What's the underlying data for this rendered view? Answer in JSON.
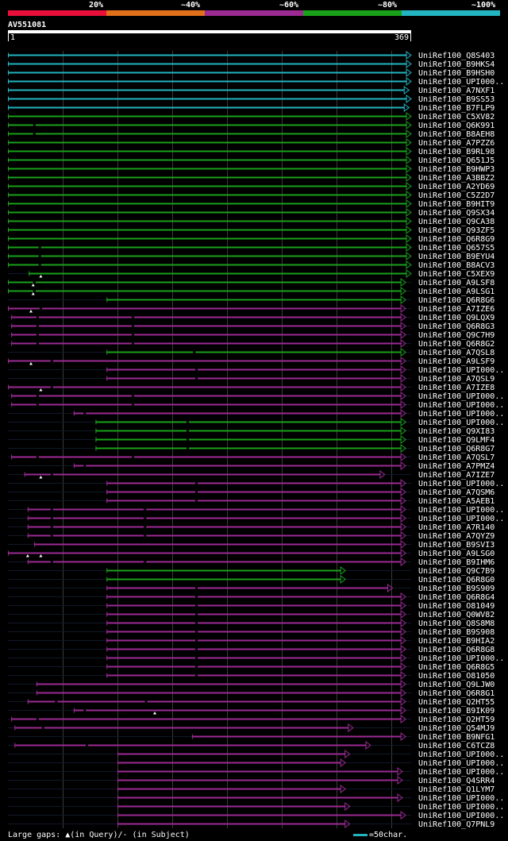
{
  "legend": {
    "labels": [
      "20%",
      "~40%",
      "~60%",
      "~80%",
      "~100%"
    ],
    "colors": [
      "#e8103a",
      "#e0701a",
      "#9c2a93",
      "#1aa11a",
      "#22b5c0"
    ]
  },
  "query": {
    "name": "AV551081",
    "start": "1",
    "end": "369"
  },
  "footer": {
    "gaps_note": "Large gaps: ▲(in Query)/- (in Subject)",
    "scale_note": "=50char."
  },
  "colors": {
    "background": "#000000",
    "baseline": "#101828",
    "grid": "#3a3a3a",
    "tick": "#000000"
  },
  "hits": [
    {
      "label": "UniRef100_Q8S403",
      "identity": 100,
      "q_start": 1,
      "q_end": 369,
      "gap_ticks": [],
      "query_gaps": []
    },
    {
      "label": "UniRef100_B9HKS4",
      "identity": 100,
      "q_start": 1,
      "q_end": 369,
      "gap_ticks": [],
      "query_gaps": []
    },
    {
      "label": "UniRef100_B9HSH0",
      "identity": 100,
      "q_start": 1,
      "q_end": 369,
      "gap_ticks": [],
      "query_gaps": []
    },
    {
      "label": "UniRef100_UPI000..",
      "identity": 100,
      "q_start": 1,
      "q_end": 369,
      "gap_ticks": [],
      "query_gaps": []
    },
    {
      "label": "UniRef100_A7NXF1",
      "identity": 100,
      "q_start": 1,
      "q_end": 367,
      "gap_ticks": [],
      "query_gaps": []
    },
    {
      "label": "UniRef100_B9SS53",
      "identity": 100,
      "q_start": 1,
      "q_end": 369,
      "gap_ticks": [],
      "query_gaps": []
    },
    {
      "label": "UniRef100_B7FLP9",
      "identity": 100,
      "q_start": 1,
      "q_end": 367,
      "gap_ticks": [],
      "query_gaps": []
    },
    {
      "label": "UniRef100_C5XV82",
      "identity": 80,
      "q_start": 1,
      "q_end": 369,
      "gap_ticks": [],
      "query_gaps": []
    },
    {
      "label": "UniRef100_Q6K991",
      "identity": 80,
      "q_start": 1,
      "q_end": 369,
      "gap_ticks": [
        24
      ],
      "query_gaps": []
    },
    {
      "label": "UniRef100_B8AEH8",
      "identity": 80,
      "q_start": 1,
      "q_end": 369,
      "gap_ticks": [
        24
      ],
      "query_gaps": []
    },
    {
      "label": "UniRef100_A7PZZ6",
      "identity": 80,
      "q_start": 1,
      "q_end": 369,
      "gap_ticks": [],
      "query_gaps": []
    },
    {
      "label": "UniRef100_B9RL98",
      "identity": 80,
      "q_start": 1,
      "q_end": 369,
      "gap_ticks": [],
      "query_gaps": []
    },
    {
      "label": "UniRef100_Q651J5",
      "identity": 80,
      "q_start": 1,
      "q_end": 369,
      "gap_ticks": [],
      "query_gaps": []
    },
    {
      "label": "UniRef100_B9HWP3",
      "identity": 80,
      "q_start": 1,
      "q_end": 369,
      "gap_ticks": [],
      "query_gaps": []
    },
    {
      "label": "UniRef100_A3BBZ2",
      "identity": 80,
      "q_start": 1,
      "q_end": 369,
      "gap_ticks": [],
      "query_gaps": []
    },
    {
      "label": "UniRef100_A2YD69",
      "identity": 80,
      "q_start": 1,
      "q_end": 369,
      "gap_ticks": [],
      "query_gaps": []
    },
    {
      "label": "UniRef100_C5Z2D7",
      "identity": 80,
      "q_start": 1,
      "q_end": 369,
      "gap_ticks": [],
      "query_gaps": []
    },
    {
      "label": "UniRef100_B9HIT9",
      "identity": 80,
      "q_start": 1,
      "q_end": 369,
      "gap_ticks": [],
      "query_gaps": []
    },
    {
      "label": "UniRef100_Q9SX34",
      "identity": 80,
      "q_start": 1,
      "q_end": 369,
      "gap_ticks": [],
      "query_gaps": []
    },
    {
      "label": "UniRef100_Q9CA38",
      "identity": 80,
      "q_start": 1,
      "q_end": 369,
      "gap_ticks": [],
      "query_gaps": []
    },
    {
      "label": "UniRef100_Q93ZF5",
      "identity": 80,
      "q_start": 1,
      "q_end": 369,
      "gap_ticks": [],
      "query_gaps": []
    },
    {
      "label": "UniRef100_Q6R8G9",
      "identity": 80,
      "q_start": 1,
      "q_end": 369,
      "gap_ticks": [],
      "query_gaps": []
    },
    {
      "label": "UniRef100_Q657S5",
      "identity": 80,
      "q_start": 1,
      "q_end": 369,
      "gap_ticks": [
        29
      ],
      "query_gaps": []
    },
    {
      "label": "UniRef100_B9EYU4",
      "identity": 80,
      "q_start": 1,
      "q_end": 369,
      "gap_ticks": [
        29
      ],
      "query_gaps": []
    },
    {
      "label": "UniRef100_B8ACV3",
      "identity": 80,
      "q_start": 1,
      "q_end": 369,
      "gap_ticks": [
        29
      ],
      "query_gaps": []
    },
    {
      "label": "UniRef100_C5XEX9",
      "identity": 80,
      "q_start": 20,
      "q_end": 369,
      "gap_ticks": [],
      "query_gaps": [
        31
      ]
    },
    {
      "label": "UniRef100_A9LSF8",
      "identity": 80,
      "q_start": 1,
      "q_end": 364,
      "gap_ticks": [
        24
      ],
      "query_gaps": [
        24
      ]
    },
    {
      "label": "UniRef100_A9LSG1",
      "identity": 80,
      "q_start": 1,
      "q_end": 364,
      "gap_ticks": [
        24
      ],
      "query_gaps": [
        24
      ]
    },
    {
      "label": "UniRef100_Q6R8G6",
      "identity": 80,
      "q_start": 91,
      "q_end": 364,
      "gap_ticks": [],
      "query_gaps": []
    },
    {
      "label": "UniRef100_A7IZE6",
      "identity": 60,
      "q_start": 1,
      "q_end": 364,
      "gap_ticks": [
        30
      ],
      "query_gaps": [
        22
      ]
    },
    {
      "label": "UniRef100_Q9LQX9",
      "identity": 60,
      "q_start": 4,
      "q_end": 364,
      "gap_ticks": [
        27,
        114
      ],
      "query_gaps": []
    },
    {
      "label": "UniRef100_Q6R8G3",
      "identity": 60,
      "q_start": 4,
      "q_end": 364,
      "gap_ticks": [
        27,
        114
      ],
      "query_gaps": []
    },
    {
      "label": "UniRef100_Q9C7H9",
      "identity": 60,
      "q_start": 4,
      "q_end": 364,
      "gap_ticks": [
        27,
        114
      ],
      "query_gaps": []
    },
    {
      "label": "UniRef100_Q6R8G2",
      "identity": 60,
      "q_start": 4,
      "q_end": 364,
      "gap_ticks": [
        27,
        114
      ],
      "query_gaps": []
    },
    {
      "label": "UniRef100_A7QSL8",
      "identity": 80,
      "q_start": 91,
      "q_end": 364,
      "gap_ticks": [
        170
      ],
      "query_gaps": []
    },
    {
      "label": "UniRef100_A9LSF9",
      "identity": 60,
      "q_start": 1,
      "q_end": 364,
      "gap_ticks": [
        40
      ],
      "query_gaps": [
        22
      ]
    },
    {
      "label": "UniRef100_UPI000..",
      "identity": 60,
      "q_start": 91,
      "q_end": 364,
      "gap_ticks": [
        172
      ],
      "query_gaps": []
    },
    {
      "label": "UniRef100_A7QSL9",
      "identity": 60,
      "q_start": 91,
      "q_end": 364,
      "gap_ticks": [
        172
      ],
      "query_gaps": []
    },
    {
      "label": "UniRef100_A7IZE8",
      "identity": 60,
      "q_start": 1,
      "q_end": 364,
      "gap_ticks": [
        40
      ],
      "query_gaps": [
        31
      ]
    },
    {
      "label": "UniRef100_UPI000..",
      "identity": 60,
      "q_start": 4,
      "q_end": 364,
      "gap_ticks": [
        27,
        114
      ],
      "query_gaps": []
    },
    {
      "label": "UniRef100_UPI000..",
      "identity": 60,
      "q_start": 4,
      "q_end": 364,
      "gap_ticks": [
        27,
        114
      ],
      "query_gaps": []
    },
    {
      "label": "UniRef100_UPI000..",
      "identity": 60,
      "q_start": 61,
      "q_end": 364,
      "gap_ticks": [
        70
      ],
      "query_gaps": []
    },
    {
      "label": "UniRef100_UPI000..",
      "identity": 80,
      "q_start": 81,
      "q_end": 364,
      "gap_ticks": [
        164
      ],
      "query_gaps": []
    },
    {
      "label": "UniRef100_Q9XI83",
      "identity": 80,
      "q_start": 81,
      "q_end": 364,
      "gap_ticks": [
        164
      ],
      "query_gaps": []
    },
    {
      "label": "UniRef100_Q9LMF4",
      "identity": 80,
      "q_start": 81,
      "q_end": 364,
      "gap_ticks": [
        164
      ],
      "query_gaps": []
    },
    {
      "label": "UniRef100_Q6R8G7",
      "identity": 80,
      "q_start": 81,
      "q_end": 364,
      "gap_ticks": [
        164
      ],
      "query_gaps": []
    },
    {
      "label": "UniRef100_A7QSL7",
      "identity": 60,
      "q_start": 4,
      "q_end": 364,
      "gap_ticks": [
        27,
        114
      ],
      "query_gaps": []
    },
    {
      "label": "UniRef100_A7PMZ4",
      "identity": 60,
      "q_start": 61,
      "q_end": 364,
      "gap_ticks": [
        70
      ],
      "query_gaps": []
    },
    {
      "label": "UniRef100_A7IZE7",
      "identity": 60,
      "q_start": 16,
      "q_end": 345,
      "gap_ticks": [
        40
      ],
      "query_gaps": [
        31
      ]
    },
    {
      "label": "UniRef100_UPI000..",
      "identity": 60,
      "q_start": 91,
      "q_end": 364,
      "gap_ticks": [
        172
      ],
      "query_gaps": []
    },
    {
      "label": "UniRef100_A7QSM6",
      "identity": 60,
      "q_start": 91,
      "q_end": 364,
      "gap_ticks": [
        172
      ],
      "query_gaps": []
    },
    {
      "label": "UniRef100_A5AEB1",
      "identity": 60,
      "q_start": 91,
      "q_end": 364,
      "gap_ticks": [
        172
      ],
      "query_gaps": []
    },
    {
      "label": "UniRef100_UPI000..",
      "identity": 60,
      "q_start": 19,
      "q_end": 364,
      "gap_ticks": [
        40,
        125
      ],
      "query_gaps": []
    },
    {
      "label": "UniRef100_UPI000..",
      "identity": 60,
      "q_start": 19,
      "q_end": 364,
      "gap_ticks": [
        40,
        125
      ],
      "query_gaps": []
    },
    {
      "label": "UniRef100_A7R140",
      "identity": 60,
      "q_start": 19,
      "q_end": 364,
      "gap_ticks": [
        40,
        125
      ],
      "query_gaps": []
    },
    {
      "label": "UniRef100_A7QYZ9",
      "identity": 60,
      "q_start": 19,
      "q_end": 364,
      "gap_ticks": [
        40,
        125
      ],
      "query_gaps": []
    },
    {
      "label": "UniRef100_B9SVI3",
      "identity": 60,
      "q_start": 25,
      "q_end": 364,
      "gap_ticks": [],
      "query_gaps": []
    },
    {
      "label": "UniRef100_A9LSG0",
      "identity": 60,
      "q_start": 1,
      "q_end": 364,
      "gap_ticks": [],
      "query_gaps": [
        19,
        31
      ]
    },
    {
      "label": "UniRef100_B9IHM6",
      "identity": 60,
      "q_start": 19,
      "q_end": 364,
      "gap_ticks": [
        40,
        125
      ],
      "query_gaps": []
    },
    {
      "label": "UniRef100_Q9C7B9",
      "identity": 80,
      "q_start": 91,
      "q_end": 309,
      "gap_ticks": [],
      "query_gaps": []
    },
    {
      "label": "UniRef100_Q6R8G0",
      "identity": 80,
      "q_start": 91,
      "q_end": 309,
      "gap_ticks": [],
      "query_gaps": []
    },
    {
      "label": "UniRef100_B9S909",
      "identity": 60,
      "q_start": 91,
      "q_end": 352,
      "gap_ticks": [
        172
      ],
      "query_gaps": []
    },
    {
      "label": "UniRef100_Q6R8G4",
      "identity": 60,
      "q_start": 91,
      "q_end": 364,
      "gap_ticks": [
        172
      ],
      "query_gaps": []
    },
    {
      "label": "UniRef100_O81049",
      "identity": 60,
      "q_start": 91,
      "q_end": 364,
      "gap_ticks": [
        172
      ],
      "query_gaps": []
    },
    {
      "label": "UniRef100_Q0WV82",
      "identity": 60,
      "q_start": 91,
      "q_end": 364,
      "gap_ticks": [
        172
      ],
      "query_gaps": []
    },
    {
      "label": "UniRef100_Q8S8M8",
      "identity": 60,
      "q_start": 91,
      "q_end": 364,
      "gap_ticks": [
        172
      ],
      "query_gaps": []
    },
    {
      "label": "UniRef100_B9S908",
      "identity": 60,
      "q_start": 91,
      "q_end": 364,
      "gap_ticks": [
        172
      ],
      "query_gaps": []
    },
    {
      "label": "UniRef100_B9HIA2",
      "identity": 60,
      "q_start": 91,
      "q_end": 364,
      "gap_ticks": [
        172
      ],
      "query_gaps": []
    },
    {
      "label": "UniRef100_Q6R8G8",
      "identity": 60,
      "q_start": 91,
      "q_end": 364,
      "gap_ticks": [
        172
      ],
      "query_gaps": []
    },
    {
      "label": "UniRef100_UPI000..",
      "identity": 60,
      "q_start": 91,
      "q_end": 364,
      "gap_ticks": [
        172
      ],
      "query_gaps": []
    },
    {
      "label": "UniRef100_Q6R8G5",
      "identity": 60,
      "q_start": 91,
      "q_end": 364,
      "gap_ticks": [
        172
      ],
      "query_gaps": []
    },
    {
      "label": "UniRef100_O81050",
      "identity": 60,
      "q_start": 91,
      "q_end": 364,
      "gap_ticks": [
        172
      ],
      "query_gaps": []
    },
    {
      "label": "UniRef100_Q9LJW0",
      "identity": 60,
      "q_start": 27,
      "q_end": 364,
      "gap_ticks": [],
      "query_gaps": []
    },
    {
      "label": "UniRef100_Q6R8G1",
      "identity": 60,
      "q_start": 27,
      "q_end": 364,
      "gap_ticks": [],
      "query_gaps": []
    },
    {
      "label": "UniRef100_Q2HT55",
      "identity": 60,
      "q_start": 19,
      "q_end": 364,
      "gap_ticks": [
        44,
        126
      ],
      "query_gaps": []
    },
    {
      "label": "UniRef100_B9IK09",
      "identity": 60,
      "q_start": 61,
      "q_end": 364,
      "gap_ticks": [
        70
      ],
      "query_gaps": [
        135
      ]
    },
    {
      "label": "UniRef100_Q2HT59",
      "identity": 60,
      "q_start": 4,
      "q_end": 364,
      "gap_ticks": [
        27
      ],
      "query_gaps": []
    },
    {
      "label": "UniRef100_Q54MJ9",
      "identity": 60,
      "q_start": 7,
      "q_end": 316,
      "gap_ticks": [
        32
      ],
      "query_gaps": []
    },
    {
      "label": "UniRef100_B9NFG1",
      "identity": 60,
      "q_start": 169,
      "q_end": 364,
      "gap_ticks": [],
      "query_gaps": []
    },
    {
      "label": "UniRef100_C6TCZ8",
      "identity": 60,
      "q_start": 7,
      "q_end": 332,
      "gap_ticks": [
        72
      ],
      "query_gaps": []
    },
    {
      "label": "UniRef100_UPI000..",
      "identity": 60,
      "q_start": 101,
      "q_end": 313,
      "gap_ticks": [],
      "query_gaps": []
    },
    {
      "label": "UniRef100_UPI000..",
      "identity": 60,
      "q_start": 101,
      "q_end": 309,
      "gap_ticks": [],
      "query_gaps": []
    },
    {
      "label": "UniRef100_UPI000..",
      "identity": 60,
      "q_start": 101,
      "q_end": 361,
      "gap_ticks": [],
      "query_gaps": []
    },
    {
      "label": "UniRef100_Q4SRR4",
      "identity": 60,
      "q_start": 101,
      "q_end": 361,
      "gap_ticks": [],
      "query_gaps": []
    },
    {
      "label": "UniRef100_Q1LYM7",
      "identity": 60,
      "q_start": 101,
      "q_end": 309,
      "gap_ticks": [],
      "query_gaps": []
    },
    {
      "label": "UniRef100_UPI000..",
      "identity": 60,
      "q_start": 101,
      "q_end": 361,
      "gap_ticks": [],
      "query_gaps": []
    },
    {
      "label": "UniRef100_UPI000..",
      "identity": 60,
      "q_start": 101,
      "q_end": 313,
      "gap_ticks": [],
      "query_gaps": []
    },
    {
      "label": "UniRef100_UPI000..",
      "identity": 60,
      "q_start": 101,
      "q_end": 364,
      "gap_ticks": [],
      "query_gaps": []
    },
    {
      "label": "UniRef100_Q7PNL9",
      "identity": 60,
      "q_start": 101,
      "q_end": 313,
      "gap_ticks": [],
      "query_gaps": []
    }
  ]
}
